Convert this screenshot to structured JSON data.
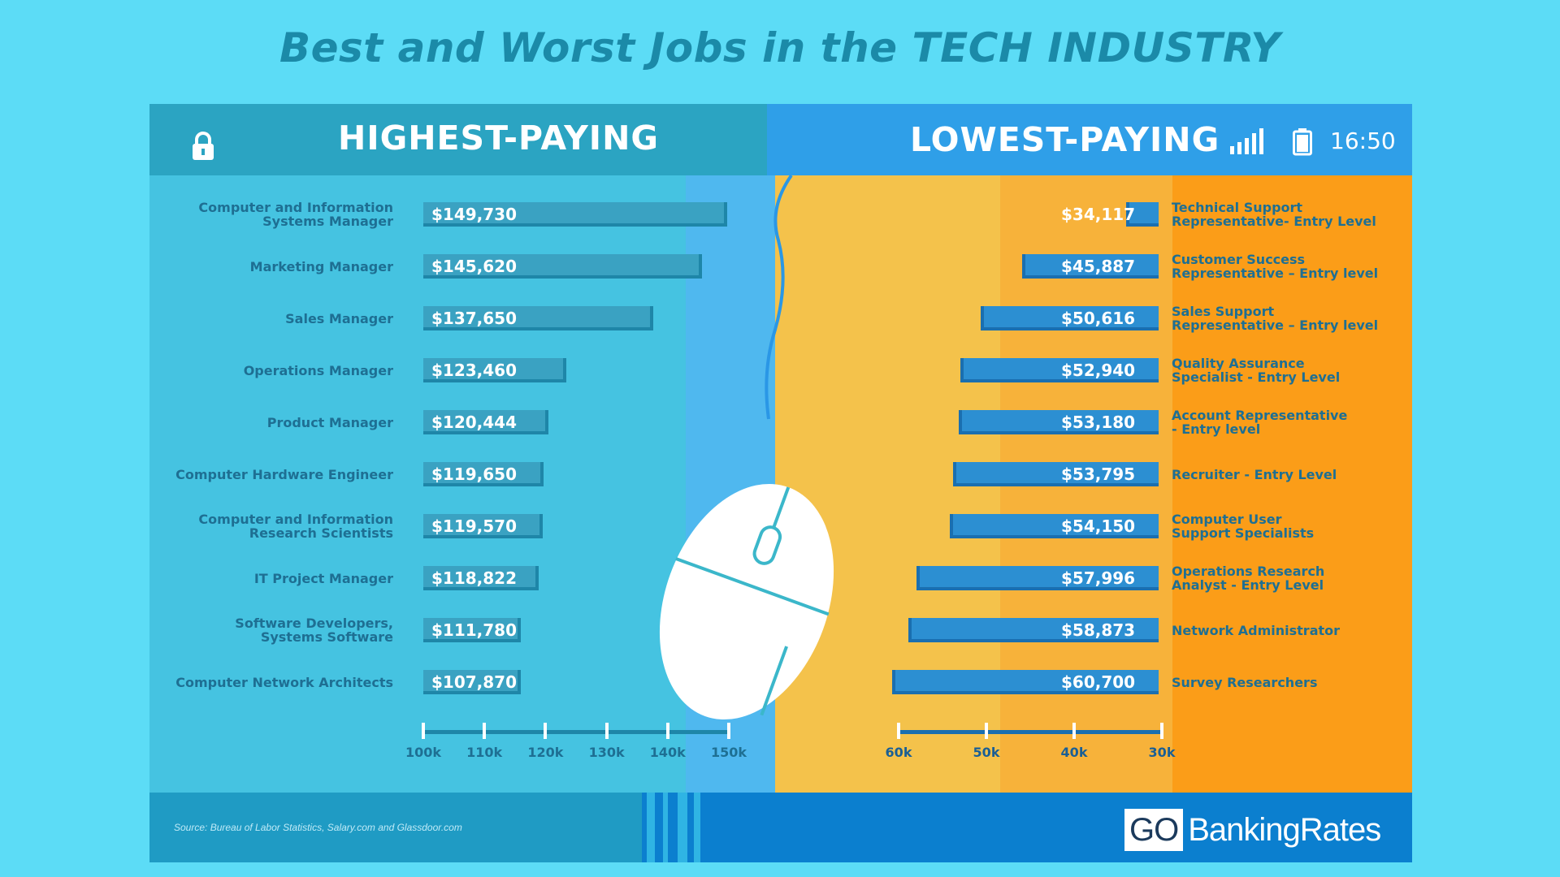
{
  "title": "Best and Worst Jobs in the TECH INDUSTRY",
  "header": {
    "left_label": "HIGHEST-PAYING",
    "right_label": "LOWEST-PAYING",
    "clock": "16:50"
  },
  "icons": [
    "lock-icon",
    "signal-icon",
    "battery-icon",
    "mouse-icon"
  ],
  "colors": {
    "background": "#5cdcf6",
    "left_panel": "#45c3e1",
    "right_panel": "#fb9d18",
    "footer": "#0b7fcf"
  },
  "footer": {
    "source": "Source: Bureau of Labor Statistics, Salary.com and Glassdoor.com",
    "logo_go": "GO",
    "logo_rest": "BankingRates"
  },
  "chart_data": [
    {
      "type": "bar",
      "orientation": "horizontal",
      "title": "HIGHEST-PAYING",
      "categories": [
        "Computer and Information\nSystems Manager",
        "Marketing Manager",
        "Sales Manager",
        "Operations Manager",
        "Product Manager",
        "Computer Hardware Engineer",
        "Computer and Information\nResearch Scientists",
        "IT Project Manager",
        "Software Developers,\nSystems Software",
        "Computer Network Architects"
      ],
      "values": [
        149730,
        145620,
        137650,
        123460,
        120444,
        119650,
        119570,
        118822,
        111780,
        107870
      ],
      "value_labels": [
        "$149,730",
        "$145,620",
        "$137,650",
        "$123,460",
        "$120,444",
        "$119,650",
        "$119,570",
        "$118,822",
        "$111,780",
        "$107,870"
      ],
      "xlim": [
        100000,
        150000
      ],
      "ticks": [
        100000,
        110000,
        120000,
        130000,
        140000,
        150000
      ],
      "tick_labels": [
        "100k",
        "110k",
        "120k",
        "130k",
        "140k",
        "150k"
      ]
    },
    {
      "type": "bar",
      "orientation": "horizontal",
      "direction": "reversed",
      "title": "LOWEST-PAYING",
      "categories": [
        "Technical Support\nRepresentative- Entry Level",
        "Customer Success\nRepresentative – Entry level",
        "Sales Support\nRepresentative – Entry level",
        "Quality Assurance\nSpecialist - Entry Level",
        "Account Representative\n- Entry level",
        "Recruiter - Entry Level",
        "Computer User\nSupport Specialists",
        "Operations Research\nAnalyst - Entry Level",
        "Network Administrator",
        "Survey Researchers"
      ],
      "values": [
        34117,
        45887,
        50616,
        52940,
        53180,
        53795,
        54150,
        57996,
        58873,
        60700
      ],
      "value_labels": [
        "$34,117",
        "$45,887",
        "$50,616",
        "$52,940",
        "$53,180",
        "$53,795",
        "$54,150",
        "$57,996",
        "$58,873",
        "$60,700"
      ],
      "xlim": [
        30000,
        60000
      ],
      "ticks": [
        60000,
        50000,
        40000,
        30000
      ],
      "tick_labels": [
        "60k",
        "50k",
        "40k",
        "30k"
      ]
    }
  ]
}
